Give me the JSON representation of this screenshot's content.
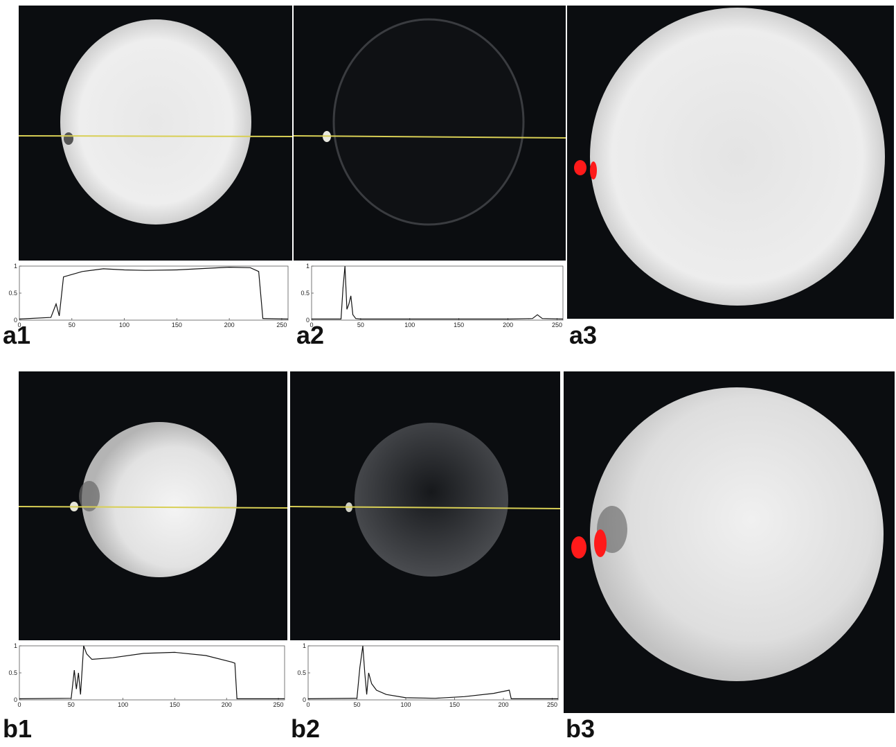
{
  "figure": {
    "panels": [
      {
        "id": "a1",
        "label": "a1"
      },
      {
        "id": "a2",
        "label": "a2"
      },
      {
        "id": "a3",
        "label": "a3"
      },
      {
        "id": "b1",
        "label": "b1"
      },
      {
        "id": "b2",
        "label": "b2"
      },
      {
        "id": "b3",
        "label": "b3"
      }
    ],
    "colors": {
      "background": "#0b0d10",
      "profile_line": "#d8cf55",
      "segmentation": "#ff1a1a",
      "plot_line": "#111111"
    }
  },
  "chart_data": [
    {
      "type": "line",
      "panel": "a1",
      "x": [
        0,
        30,
        35,
        38,
        42,
        60,
        80,
        100,
        120,
        150,
        180,
        200,
        220,
        228,
        232,
        256
      ],
      "values": [
        0.02,
        0.05,
        0.3,
        0.08,
        0.8,
        0.9,
        0.95,
        0.93,
        0.92,
        0.93,
        0.96,
        0.98,
        0.97,
        0.9,
        0.03,
        0.02
      ],
      "xlim": [
        0,
        256
      ],
      "ylim": [
        0,
        1
      ],
      "xticks": [
        "0",
        "50",
        "100",
        "150",
        "200",
        "250"
      ],
      "yticks": [
        "0",
        "0.5",
        "1"
      ]
    },
    {
      "type": "line",
      "panel": "a2",
      "x": [
        0,
        30,
        32,
        34,
        36,
        38,
        40,
        42,
        45,
        50,
        100,
        150,
        200,
        225,
        230,
        235,
        256
      ],
      "values": [
        0.02,
        0.02,
        0.6,
        1.0,
        0.2,
        0.3,
        0.45,
        0.1,
        0.03,
        0.02,
        0.02,
        0.02,
        0.02,
        0.03,
        0.1,
        0.03,
        0.02
      ],
      "xlim": [
        0,
        256
      ],
      "ylim": [
        0,
        1
      ],
      "xticks": [
        "0",
        "50",
        "100",
        "150",
        "200",
        "250"
      ],
      "yticks": [
        "0",
        "0.5",
        "1"
      ]
    },
    {
      "type": "line",
      "panel": "b1",
      "x": [
        0,
        50,
        53,
        55,
        57,
        59,
        62,
        65,
        70,
        90,
        120,
        150,
        180,
        205,
        208,
        210,
        256
      ],
      "values": [
        0.02,
        0.03,
        0.55,
        0.2,
        0.5,
        0.1,
        1.0,
        0.85,
        0.75,
        0.78,
        0.86,
        0.88,
        0.82,
        0.7,
        0.68,
        0.02,
        0.02
      ],
      "xlim": [
        0,
        256
      ],
      "ylim": [
        0,
        1
      ],
      "xticks": [
        "0",
        "50",
        "100",
        "150",
        "200",
        "250"
      ],
      "yticks": [
        "0",
        "0.5",
        "1"
      ]
    },
    {
      "type": "line",
      "panel": "b2",
      "x": [
        0,
        50,
        53,
        56,
        58,
        60,
        62,
        65,
        70,
        80,
        100,
        130,
        160,
        190,
        206,
        208,
        256
      ],
      "values": [
        0.02,
        0.03,
        0.6,
        1.0,
        0.5,
        0.1,
        0.5,
        0.3,
        0.18,
        0.1,
        0.04,
        0.03,
        0.06,
        0.12,
        0.18,
        0.02,
        0.02
      ],
      "xlim": [
        0,
        256
      ],
      "ylim": [
        0,
        1
      ],
      "xticks": [
        "0",
        "50",
        "100",
        "150",
        "200",
        "250"
      ],
      "yticks": [
        "0",
        "0.5",
        "1"
      ]
    }
  ]
}
